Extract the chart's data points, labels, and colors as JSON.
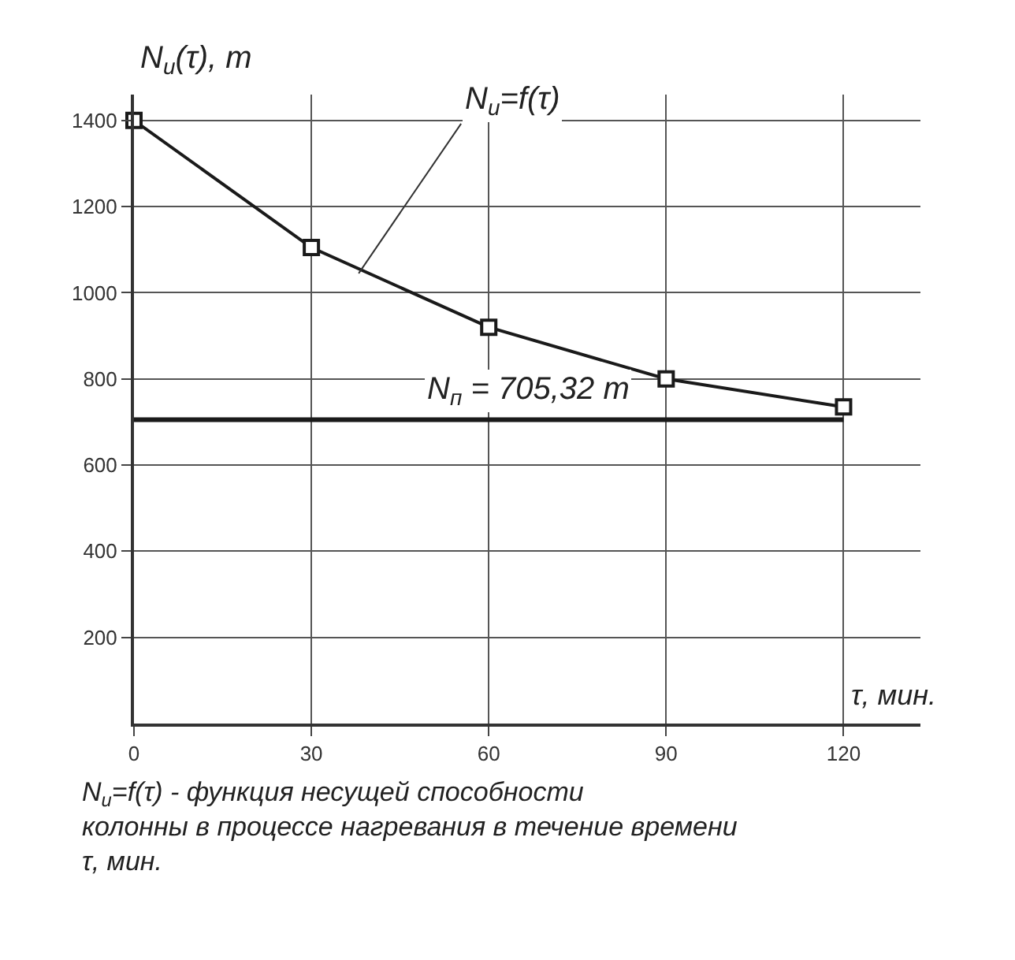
{
  "chart_data": {
    "type": "line",
    "xlabel": "τ, мин.",
    "ylabel": "N$_{u}$(τ), m",
    "x": [
      0,
      30,
      60,
      90,
      120
    ],
    "series": [
      {
        "color": "#1a1a1a",
        "values": [
          1400,
          1105,
          920,
          800,
          735
        ]
      }
    ],
    "xlim": [
      0,
      133
    ],
    "xticks": [
      0,
      30,
      60,
      90,
      120
    ],
    "ylim": [
      0,
      1460
    ],
    "yticks": [
      200,
      400,
      600,
      800,
      1000,
      1200,
      1400
    ],
    "grid": true,
    "marker": "square",
    "line_style": "solid",
    "ref_lines": [
      {
        "axis": "y",
        "value": 705.32,
        "label": "N$_{п}$ = 705,32 m",
        "color": "#1a1a1a"
      }
    ],
    "annotations": [
      {
        "text": "N$_{u}$=f(τ)",
        "x": 38,
        "y": 1045
      },
      "N$_{u}$=f(τ) - функция несущей способности колонны в процессе нагревания в течение времени τ, мин."
    ]
  }
}
